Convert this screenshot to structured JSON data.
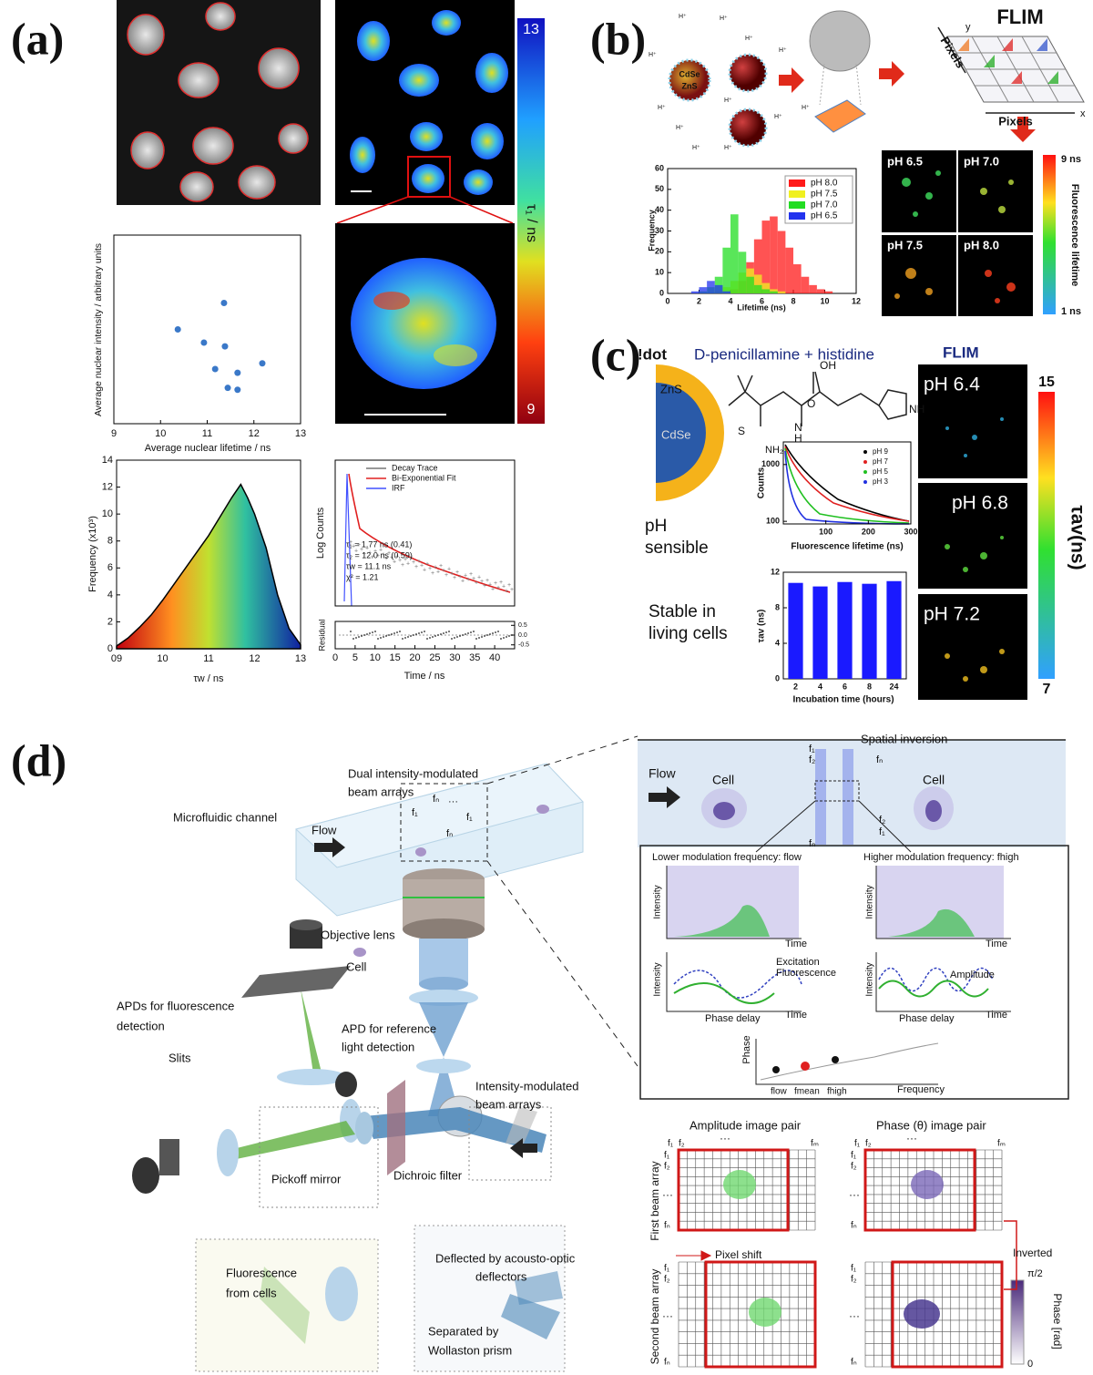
{
  "panel_labels": [
    "(a)",
    "(b)",
    "(c)",
    "(d)"
  ],
  "a": {
    "colorbar": {
      "top": 13,
      "bottom": 9,
      "label": "τ₁ / ns"
    },
    "scatter": {
      "xlabel": "Average nuclear lifetime / ns",
      "ylabel": "Average nuclear intensity / arbitrary units",
      "xlim": [
        9,
        13
      ],
      "ylim": [
        0,
        1
      ],
      "xticks": [
        9,
        10,
        11,
        12,
        13
      ],
      "x": [
        10.37,
        11.36,
        10.93,
        11.38,
        12.18,
        11.17,
        11.65,
        11.44,
        11.65
      ],
      "y": [
        0.5,
        0.64,
        0.43,
        0.41,
        0.32,
        0.29,
        0.27,
        0.19,
        0.18
      ]
    },
    "histogram": {
      "xlabel": "τw / ns",
      "ylabel": "Frequency (x10³)",
      "xlim": [
        9,
        13
      ],
      "ylim": [
        0,
        14
      ],
      "xticks": [
        {
          "value": 9,
          "label": "09"
        },
        10,
        11,
        12,
        13
      ],
      "yticks": [
        0,
        2,
        4,
        6,
        8,
        10,
        12,
        14
      ],
      "x": [
        9,
        9.25,
        9.5,
        9.75,
        10,
        10.25,
        10.5,
        10.75,
        11,
        11.25,
        11.5,
        11.7,
        11.85,
        12,
        12.25,
        12.5,
        12.75,
        13
      ],
      "y": [
        0.2,
        0.8,
        1.6,
        2.5,
        3.6,
        4.8,
        6.0,
        7.2,
        8.4,
        9.8,
        11.2,
        12.2,
        11.2,
        10.0,
        7.5,
        4.0,
        1.5,
        0.3
      ]
    },
    "decay": {
      "legend": [
        "Decay Trace",
        "Bi-Exponential Fit",
        "IRF"
      ],
      "fit_text": [
        "τ₁ = 1.77 ns (0.41)",
        "τ₂ = 12.0 ns (0.59)",
        "τw = 11.1 ns",
        "χ² = 1.21"
      ],
      "ylabel": "Log Counts",
      "residual_label": "Residual",
      "xlabel": "Time / ns",
      "xlim": [
        0,
        45
      ],
      "xticks": [
        0,
        5,
        10,
        15,
        20,
        25,
        30,
        35,
        40
      ],
      "residual_ylim": [
        -0.7,
        0.7
      ],
      "residual_ticks": [
        0.5,
        {
          "value": 0,
          "label": "0.0"
        },
        -0.5
      ]
    }
  },
  "b": {
    "schematic": {
      "core": "CdSe",
      "shell": "ZnS",
      "proton": "H⁺",
      "flim": "FLIM",
      "pixels_y": "Pixels",
      "pixels_x": "Pixels",
      "y": "y",
      "x": "x"
    },
    "chart": {
      "xlabel": "Lifetime (ns)",
      "ylabel": "Frequency",
      "xlim": [
        0,
        12
      ],
      "ylim": [
        0,
        60
      ],
      "xticks": [
        0,
        2,
        4,
        6,
        8,
        10,
        12
      ],
      "yticks": [
        0,
        10,
        20,
        30,
        40,
        50,
        60
      ],
      "bins": [
        0,
        0.5,
        1,
        1.5,
        2,
        2.5,
        3,
        3.5,
        4,
        4.5,
        5,
        5.5,
        6,
        6.5,
        7,
        7.5,
        8,
        8.5,
        9,
        9.5,
        10,
        10.5,
        11,
        11.5,
        12
      ],
      "series": [
        {
          "name": "pH 8.0",
          "color": "#ff1a1a",
          "values": [
            0,
            0,
            0,
            0,
            0,
            0,
            0,
            0,
            2,
            6,
            15,
            26,
            35,
            37,
            30,
            22,
            14,
            8,
            4,
            2,
            1,
            0,
            0,
            0
          ]
        },
        {
          "name": "pH 7.5",
          "color": "#f0f020",
          "values": [
            0,
            0,
            0,
            0,
            0,
            0,
            1,
            3,
            6,
            10,
            12,
            9,
            5,
            2,
            1,
            0,
            0,
            0,
            0,
            0,
            0,
            0,
            0,
            0
          ]
        },
        {
          "name": "pH 7.0",
          "color": "#22dd22",
          "values": [
            0,
            0,
            0,
            0,
            1,
            3,
            8,
            22,
            38,
            20,
            8,
            4,
            2,
            1,
            0,
            0,
            0,
            0,
            0,
            0,
            0,
            0,
            0,
            0
          ]
        },
        {
          "name": "pH 6.5",
          "color": "#2233ee",
          "values": [
            0,
            0,
            0,
            1,
            3,
            6,
            4,
            1,
            0,
            0,
            0,
            0,
            0,
            0,
            0,
            0,
            0,
            0,
            0,
            0,
            0,
            0,
            0,
            0
          ]
        }
      ]
    },
    "images": [
      "pH 6.5",
      "pH 7.0",
      "pH 7.5",
      "pH 8.0"
    ],
    "colorbar": {
      "top": "9 ns",
      "bottom": "1 ns",
      "label": "Fluorescence lifetime"
    }
  },
  "c": {
    "header": {
      "qdot": "!dot",
      "ligand": "D-penicillamine + histidine",
      "flim": "FLIM"
    },
    "qd": {
      "shell": "ZnS",
      "core": "CdSe"
    },
    "molecule": {
      "oh": "OH",
      "o": "O",
      "s": "S",
      "nh2": "NH₂",
      "n": "N",
      "h": "H",
      "nh": "NH"
    },
    "ph_text": [
      "pH",
      "sensible"
    ],
    "stable_text": [
      "Stable in",
      "living cells"
    ],
    "decay": {
      "ylabel": "Counts",
      "xlabel": "Fluorescence lifetime (ns)",
      "log": true,
      "xlim": [
        0,
        300
      ],
      "ylim": [
        90,
        2500
      ],
      "xticks": [
        100,
        200,
        300
      ],
      "yticks": [
        100,
        1000
      ],
      "legend": [
        {
          "name": "pH 9",
          "color": "#000000"
        },
        {
          "name": "pH 7",
          "color": "#e02020"
        },
        {
          "name": "pH 5",
          "color": "#20c020"
        },
        {
          "name": "pH 3",
          "color": "#2030e0"
        }
      ]
    },
    "bars": {
      "ylabel": "τav (ns)",
      "xlabel": "Incubation time (hours)",
      "categories": [
        "2",
        "4",
        "6",
        "8",
        "24"
      ],
      "values": [
        10.8,
        10.4,
        10.9,
        10.7,
        11.0
      ],
      "ylim": [
        0,
        12
      ],
      "yticks": [
        0,
        4,
        8,
        12
      ],
      "color": "#1a1aff"
    },
    "images": [
      "pH 6.4",
      "pH 6.8",
      "pH 7.2"
    ],
    "colorbar": {
      "top": 15,
      "bottom": 7,
      "label": "τav(ns)"
    }
  },
  "d": {
    "schematic": {
      "beam_arrays": [
        "Dual intensity-modulated",
        "beam arrays"
      ],
      "channel": "Microfluidic channel",
      "flow": "Flow",
      "cell": "Cell",
      "objective": "Objective lens",
      "apds": [
        "APDs for fluorescence",
        "detection"
      ],
      "apd_ref": [
        "APD for reference",
        "light detection"
      ],
      "slits": "Slits",
      "modulated": [
        "Intensity-modulated",
        "beam arrays"
      ],
      "pickoff": "Pickoff mirror",
      "dichroic": "Dichroic filter",
      "fluorescence": [
        "Fluorescence",
        "from cells"
      ],
      "deflected": [
        "Deflected by acousto-optic",
        "deflectors"
      ],
      "separated": [
        "Separated by",
        "Wollaston prism"
      ],
      "freqs": {
        "f1": "f₁",
        "f2": "f₂",
        "fn": "fₙ",
        "fm": "fₘ",
        "dots": "···"
      }
    },
    "inversion": {
      "title": "Spatial inversion",
      "flow": "Flow",
      "cell": "Cell"
    },
    "modulation": {
      "low_title": "Lower modulation frequency: flow",
      "high_title": "Higher modulation frequency: fhigh",
      "intensity": "Intensity",
      "time": "Time",
      "excitation": "Excitation",
      "fluorescence": "Fluorescence",
      "amplitude": "Amplitude",
      "phase_delay": "Phase delay",
      "phase": "Phase",
      "frequency": "Frequency",
      "f_low": "flow",
      "f_mean": "fmean",
      "f_high": "fhigh"
    },
    "images": {
      "amplitude": "Amplitude image pair",
      "phase": "Phase (θ) image pair",
      "first": "First beam array",
      "second": "Second beam array",
      "shift": "Pixel shift",
      "inverted": "Inverted",
      "phase_unit": "Phase [rad]",
      "top": "π/2",
      "bottom": "0"
    }
  }
}
